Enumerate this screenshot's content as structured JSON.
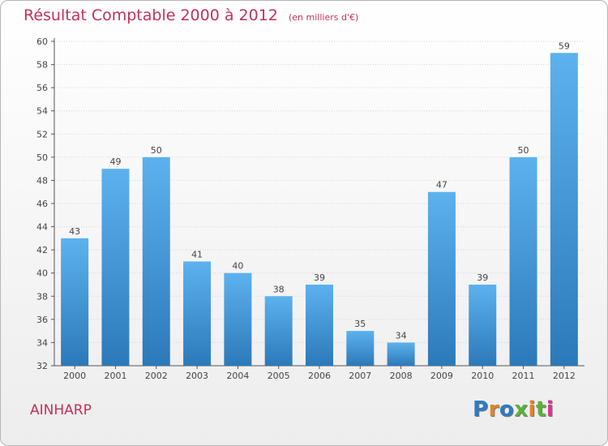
{
  "title": "Résultat Comptable 2000 à 2012",
  "subtitle": "(en milliers d'€)",
  "commune": "AINHARP",
  "logo": {
    "text": "Proxiti",
    "colors": [
      "#2e7bc4",
      "#e0842a",
      "#2e7bc4",
      "#5ab33a",
      "#e0842a",
      "#5ab33a",
      "#d23a8a"
    ]
  },
  "colors": {
    "bar": "#4a9fe0",
    "bar_light": "#5cb2ee",
    "bar_dark": "#2c79b9",
    "title": "#c4305a",
    "axis": "#555555",
    "grid": "#d4d4d4"
  },
  "chart_data": {
    "type": "bar",
    "categories": [
      "2000",
      "2001",
      "2002",
      "2003",
      "2004",
      "2005",
      "2006",
      "2007",
      "2008",
      "2009",
      "2010",
      "2011",
      "2012"
    ],
    "values": [
      43,
      49,
      50,
      41,
      40,
      38,
      39,
      35,
      34,
      47,
      39,
      50,
      59
    ],
    "data_labels": [
      "43",
      "49",
      "50",
      "41",
      "40",
      "38",
      "39",
      "35",
      "34",
      "47",
      "39",
      "50",
      "59"
    ],
    "title": "Résultat Comptable 2000 à 2012",
    "xlabel": "",
    "ylabel": "",
    "ylim": [
      32,
      60
    ],
    "yticks": [
      32,
      34,
      36,
      38,
      40,
      42,
      44,
      46,
      48,
      50,
      52,
      54,
      56,
      58,
      60
    ],
    "grid": "horizontal dotted",
    "legend": "none"
  }
}
